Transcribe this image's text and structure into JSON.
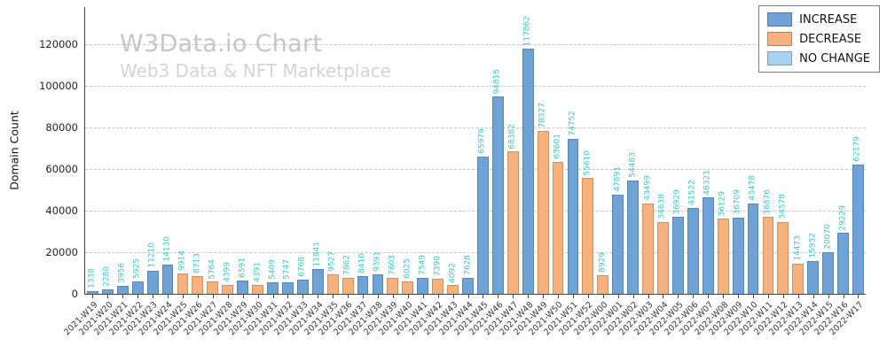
{
  "chart_data": {
    "type": "bar",
    "title": "W3Data.io Chart",
    "subtitle": "Web3 Data & NFT Marketplace",
    "ylabel": "Domain Count",
    "xlabel": "",
    "ylim": [
      0,
      138000
    ],
    "yticks": [
      0,
      20000,
      40000,
      60000,
      80000,
      100000,
      120000
    ],
    "grid": "horizontal-dashed",
    "legend": {
      "position": "top-right",
      "entries": [
        {
          "label": "INCREASE",
          "color": "#6fa3d8"
        },
        {
          "label": "DECREASE",
          "color": "#f6b17c"
        },
        {
          "label": "NO CHANGE",
          "color": "#a8d3f0"
        }
      ]
    },
    "colors": {
      "increase": "#6fa3d8",
      "decrease": "#f6b17c",
      "no_change": "#a8d3f0",
      "value_label": "#3ec6c6"
    },
    "categories": [
      "2021-W19",
      "2021-W20",
      "2021-W21",
      "2021-W22",
      "2021-W23",
      "2021-W24",
      "2021-W25",
      "2021-W26",
      "2021-W27",
      "2021-W28",
      "2021-W29",
      "2021-W30",
      "2021-W31",
      "2021-W32",
      "2021-W33",
      "2021-W34",
      "2021-W35",
      "2021-W36",
      "2021-W37",
      "2021-W38",
      "2021-W39",
      "2021-W40",
      "2021-W41",
      "2021-W42",
      "2021-W43",
      "2021-W44",
      "2021-W45",
      "2021-W46",
      "2021-W47",
      "2021-W48",
      "2021-W49",
      "2021-W50",
      "2021-W51",
      "2021-W52",
      "2022-W00",
      "2022-W01",
      "2022-W02",
      "2022-W03",
      "2022-W04",
      "2022-W05",
      "2022-W06",
      "2022-W07",
      "2022-W08",
      "2022-W09",
      "2022-W10",
      "2022-W11",
      "2022-W12",
      "2022-W13",
      "2022-W14",
      "2022-W15",
      "2022-W16",
      "2022-W17"
    ],
    "values": [
      1338,
      2280,
      3956,
      5925,
      11210,
      14130,
      9914,
      8713,
      5764,
      4399,
      6591,
      4391,
      5409,
      5747,
      6768,
      11841,
      9527,
      7862,
      8410,
      9391,
      7603,
      6025,
      7549,
      7390,
      4092,
      7628,
      65979,
      94815,
      68382,
      117862,
      78327,
      63601,
      74752,
      55610,
      8929,
      47891,
      54483,
      43499,
      34638,
      36929,
      41522,
      46321,
      36129,
      36709,
      43478,
      36876,
      34578,
      14473,
      15932,
      20070,
      29229,
      62179
    ],
    "directions": [
      "increase",
      "increase",
      "increase",
      "increase",
      "increase",
      "increase",
      "decrease",
      "decrease",
      "decrease",
      "decrease",
      "increase",
      "decrease",
      "increase",
      "increase",
      "increase",
      "increase",
      "decrease",
      "decrease",
      "increase",
      "increase",
      "decrease",
      "decrease",
      "increase",
      "decrease",
      "decrease",
      "increase",
      "increase",
      "increase",
      "decrease",
      "increase",
      "decrease",
      "decrease",
      "increase",
      "decrease",
      "decrease",
      "increase",
      "increase",
      "decrease",
      "decrease",
      "increase",
      "increase",
      "increase",
      "decrease",
      "increase",
      "increase",
      "decrease",
      "decrease",
      "decrease",
      "increase",
      "increase",
      "increase",
      "increase"
    ]
  }
}
